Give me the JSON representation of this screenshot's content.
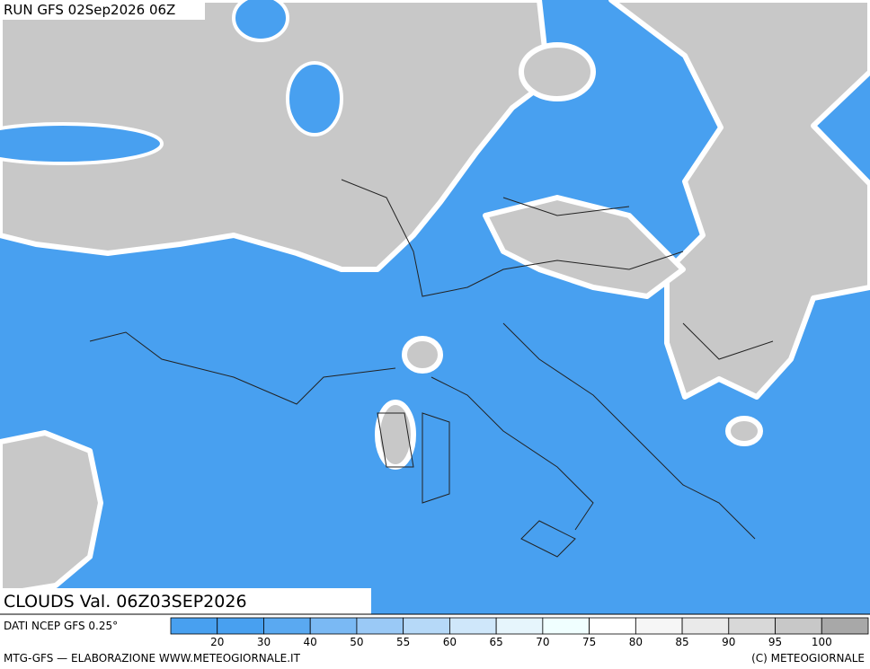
{
  "header": {
    "run": "RUN GFS 02Sep2026 06Z"
  },
  "map": {
    "title": "CLOUDS Val. 06Z03SEP2026"
  },
  "colorbar": {
    "source": "DATI NCEP GFS 0.25°",
    "ticks": [
      20,
      30,
      40,
      50,
      55,
      60,
      65,
      70,
      75,
      80,
      85,
      90,
      95,
      100
    ],
    "colors": [
      "#48a0f0",
      "#48a0f0",
      "#5aa9f1",
      "#7ab9f4",
      "#9ac9f6",
      "#b6d9f8",
      "#cfe7fa",
      "#e6f5fc",
      "#f0ffff",
      "#ffffff",
      "#f6f6f6",
      "#eaeaea",
      "#d8d8d8",
      "#c8c8c8",
      "#a8a8a8"
    ]
  },
  "footer": {
    "left": "MTG-GFS — ELABORAZIONE WWW.METEOGIORNALE.IT",
    "right": "(C) METEOGIORNALE"
  }
}
